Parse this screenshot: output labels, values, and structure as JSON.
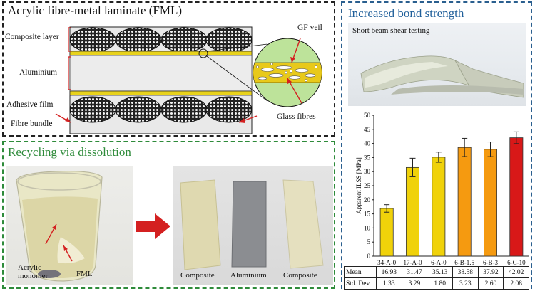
{
  "fml_panel": {
    "title": "Acrylic fibre-metal laminate (FML)",
    "labels": {
      "composite_layer": "Composite layer",
      "aluminium": "Aluminium",
      "adhesive_film": "Adhesive film",
      "fibre_bundle": "Fibre bundle",
      "gf_veil": "GF veil",
      "glass_fibres": "Glass fibres"
    }
  },
  "bond_panel": {
    "title": "Increased bond strength",
    "photo_caption": "Short beam shear testing"
  },
  "recycling_panel": {
    "title": "Recycling via dissolution",
    "labels": {
      "acrylic_monomer_line1": "Acrylic",
      "acrylic_monomer_line2": "monomer",
      "fml": "FML",
      "composite_left": "Composite",
      "aluminium": "Aluminium",
      "composite_right": "Composite"
    }
  },
  "colors": {
    "fml_border": "#222222",
    "bond_border": "#2a5f8f",
    "recycling_border": "#2e8b3a",
    "arrow_red": "#d42020",
    "adhesive_yellow": "#e8d21c",
    "bar_yellow": "#f0d20a",
    "bar_orange": "#f59a10",
    "bar_red": "#d81818"
  },
  "chart_data": {
    "type": "bar",
    "categories": [
      "34-A-0",
      "17-A-0",
      "6-A-0",
      "6-B-1.5",
      "6-B-3",
      "6-C-10"
    ],
    "values": [
      16.93,
      31.47,
      35.13,
      38.58,
      37.92,
      42.02
    ],
    "errors": [
      1.33,
      3.29,
      1.8,
      3.23,
      2.6,
      2.08
    ],
    "bar_colors": [
      "#f0d20a",
      "#f0d20a",
      "#f0d20a",
      "#f59a10",
      "#f59a10",
      "#d81818"
    ],
    "ylabel": "Apparent ILSS [MPa]",
    "ylim": [
      0,
      50
    ],
    "yticks": [
      "0",
      "5",
      "10",
      "15",
      "20",
      "25",
      "30",
      "35",
      "40",
      "45",
      "50"
    ],
    "grid": false,
    "table": {
      "row_labels": [
        "Mean",
        "Std. Dev."
      ],
      "mean": [
        "16.93",
        "31.47",
        "35.13",
        "38.58",
        "37.92",
        "42.02"
      ],
      "std": [
        "1.33",
        "3.29",
        "1.80",
        "3.23",
        "2.60",
        "2.08"
      ]
    }
  }
}
